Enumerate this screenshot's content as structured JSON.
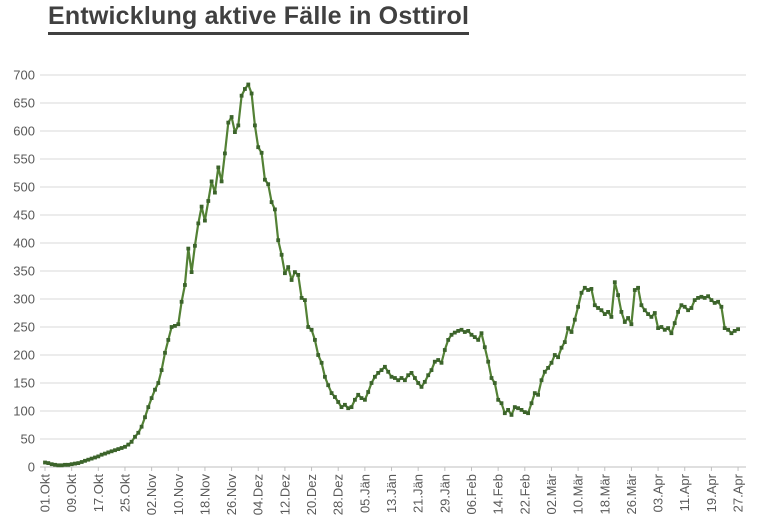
{
  "header": {
    "title": "Entwicklung aktive Fälle in Osttirol"
  },
  "chart_data": {
    "type": "line",
    "title": "Entwicklung aktive Fälle in Osttirol",
    "series_name": "aktive Fälle",
    "x_tick_labels": [
      "01.Okt",
      "09.Okt",
      "17.Okt",
      "25.Okt",
      "02.Nov",
      "10.Nov",
      "18.Nov",
      "26.Nov",
      "04.Dez",
      "12.Dez",
      "20.Dez",
      "28.Dez",
      "05.Jän",
      "13.Jän",
      "21.Jän",
      "29.Jän",
      "06.Feb",
      "14.Feb",
      "22.Feb",
      "02.Mär",
      "10.Mär",
      "18.Mär",
      "26.Mär",
      "03.Apr",
      "11.Apr",
      "19.Apr",
      "27.Apr"
    ],
    "x_tick_interval_days": 8,
    "x_start_label": "01.Okt",
    "x_end_label": "27.Apr",
    "daily_values": [
      8,
      7,
      5,
      4,
      3,
      3,
      4,
      4,
      5,
      6,
      7,
      9,
      11,
      13,
      15,
      17,
      19,
      22,
      24,
      26,
      28,
      30,
      32,
      34,
      36,
      40,
      45,
      54,
      61,
      72,
      89,
      107,
      123,
      138,
      150,
      173,
      204,
      227,
      250,
      252,
      255,
      295,
      325,
      390,
      348,
      395,
      435,
      465,
      440,
      475,
      510,
      490,
      535,
      510,
      560,
      615,
      625,
      598,
      610,
      663,
      675,
      683,
      667,
      610,
      571,
      561,
      513,
      505,
      473,
      460,
      405,
      379,
      346,
      357,
      334,
      348,
      343,
      302,
      298,
      250,
      245,
      227,
      200,
      186,
      161,
      146,
      132,
      125,
      116,
      107,
      111,
      105,
      107,
      120,
      129,
      123,
      120,
      134,
      150,
      161,
      168,
      173,
      179,
      170,
      161,
      159,
      155,
      159,
      155,
      164,
      168,
      159,
      150,
      143,
      152,
      164,
      173,
      188,
      191,
      186,
      209,
      227,
      236,
      240,
      243,
      245,
      241,
      243,
      236,
      232,
      227,
      239,
      214,
      188,
      159,
      150,
      120,
      114,
      96,
      102,
      93,
      107,
      105,
      102,
      98,
      96,
      114,
      132,
      129,
      155,
      170,
      177,
      186,
      200,
      196,
      213,
      223,
      248,
      241,
      263,
      286,
      311,
      320,
      316,
      318,
      289,
      284,
      280,
      273,
      277,
      268,
      330,
      307,
      277,
      259,
      266,
      255,
      316,
      320,
      289,
      280,
      273,
      268,
      275,
      248,
      250,
      245,
      248,
      239,
      257,
      277,
      289,
      286,
      280,
      284,
      298,
      302,
      304,
      302,
      305,
      298,
      293,
      295,
      286,
      248,
      245,
      239,
      243,
      246
    ],
    "ylim": [
      0,
      700
    ],
    "ytick_step": 50,
    "y_tick_labels": [
      "0",
      "50",
      "100",
      "150",
      "200",
      "250",
      "300",
      "350",
      "400",
      "450",
      "500",
      "550",
      "600",
      "650",
      "700"
    ],
    "grid": true,
    "legend_position": "none",
    "marker_shape": "square",
    "colors": {
      "line": "#538135",
      "marker": "#3c642b",
      "gridline": "#d9d9d9",
      "axis_line": "#bfbfbf",
      "axis_label": "#595959",
      "title": "#404040",
      "background": "#ffffff"
    }
  }
}
